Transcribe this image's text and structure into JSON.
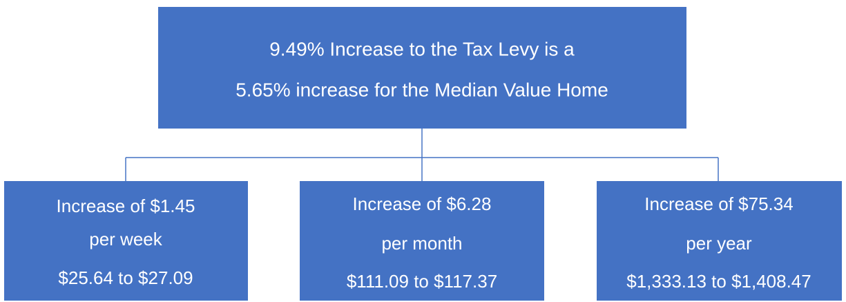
{
  "nodes": [
    {
      "lines": [
        "9.49% Increase to the Tax Levy is a",
        "5.65% increase for the Median Value Home"
      ]
    },
    {
      "lines": [
        "Increase of $1.45",
        "per week",
        "$25.64 to $27.09"
      ]
    },
    {
      "lines": [
        "Increase of $6.28",
        "per month",
        "$111.09 to $117.37"
      ]
    },
    {
      "lines": [
        "Increase of $75.34",
        "per year",
        "$1,333.13 to $1,408.47"
      ]
    }
  ]
}
